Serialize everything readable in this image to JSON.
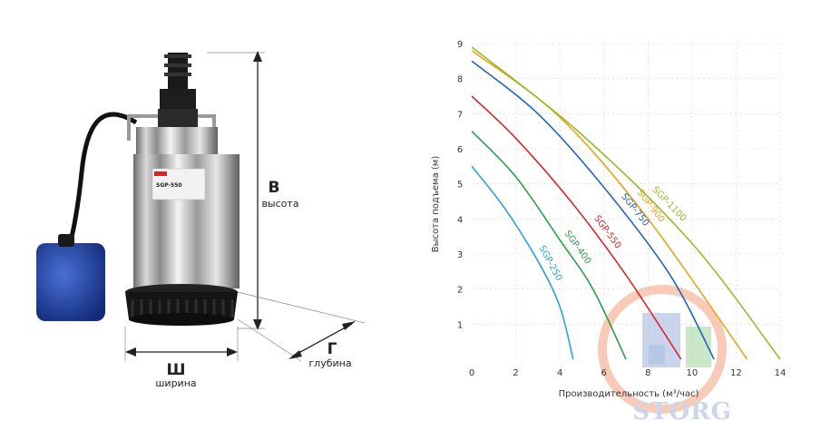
{
  "product": {
    "label_height_letter": "В",
    "label_height_word": "высота",
    "label_width_letter": "Ш",
    "label_width_word": "ширина",
    "label_depth_letter": "Г",
    "label_depth_word": "глубина",
    "badge_model": "SGP-550"
  },
  "watermark": {
    "text": "STORG"
  },
  "chart_data": {
    "type": "line",
    "title": "",
    "xlabel": "Производительность (м³/час)",
    "ylabel": "Высота подъема (м)",
    "xlim": [
      0,
      14
    ],
    "ylim": [
      0,
      9
    ],
    "x_ticks": [
      "0",
      "2",
      "4",
      "6",
      "8",
      "10",
      "12",
      "14"
    ],
    "y_ticks": [
      "1",
      "2",
      "3",
      "4",
      "5",
      "6",
      "7",
      "8",
      "9"
    ],
    "grid": true,
    "series": [
      {
        "name": "SGP-250",
        "color": "#29a3d6",
        "points": [
          [
            0,
            5.5
          ],
          [
            1.5,
            4.3
          ],
          [
            3,
            2.8
          ],
          [
            4,
            1.5
          ],
          [
            4.6,
            0
          ]
        ]
      },
      {
        "name": "SGP-400",
        "color": "#2e9e4f",
        "points": [
          [
            0,
            6.5
          ],
          [
            2,
            5.2
          ],
          [
            4,
            3.4
          ],
          [
            5.5,
            2.0
          ],
          [
            7,
            0
          ]
        ]
      },
      {
        "name": "SGP-550",
        "color": "#d9252a",
        "points": [
          [
            0,
            7.5
          ],
          [
            2,
            6.3
          ],
          [
            4.5,
            4.5
          ],
          [
            7,
            2.4
          ],
          [
            9.5,
            0
          ]
        ]
      },
      {
        "name": "SGP-750",
        "color": "#2466b8",
        "points": [
          [
            0,
            8.5
          ],
          [
            3,
            7.0
          ],
          [
            6,
            4.9
          ],
          [
            9,
            2.4
          ],
          [
            11,
            0
          ]
        ]
      },
      {
        "name": "SGP-900",
        "color": "#e8a31c",
        "points": [
          [
            0,
            8.8
          ],
          [
            4,
            6.9
          ],
          [
            8,
            4.0
          ],
          [
            12.5,
            0
          ]
        ]
      },
      {
        "name": "SGP-1100",
        "color": "#99b82a",
        "points": [
          [
            0,
            8.9
          ],
          [
            5,
            6.4
          ],
          [
            10,
            3.3
          ],
          [
            14,
            0
          ]
        ]
      }
    ]
  }
}
